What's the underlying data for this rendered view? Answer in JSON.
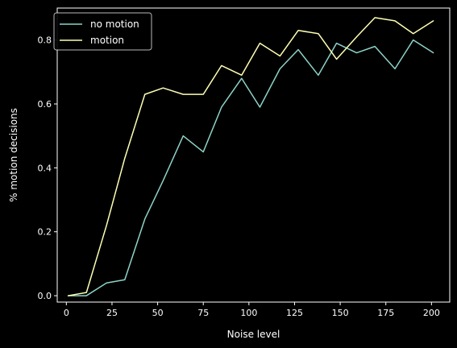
{
  "chart_data": {
    "type": "line",
    "title": "",
    "xlabel": "Noise level",
    "ylabel": "% motion decisions",
    "xlim": [
      -5,
      210
    ],
    "ylim": [
      -0.02,
      0.9
    ],
    "x_ticks": [
      0,
      25,
      50,
      75,
      100,
      125,
      150,
      175,
      200
    ],
    "y_ticks": [
      0.0,
      0.2,
      0.4,
      0.6,
      0.8
    ],
    "x_tick_labels": [
      "0",
      "25",
      "50",
      "75",
      "100",
      "125",
      "150",
      "175",
      "200"
    ],
    "y_tick_labels": [
      "0.0",
      "0.2",
      "0.4",
      "0.6",
      "0.8"
    ],
    "grid": false,
    "legend_position": "top-left",
    "x": [
      1,
      11,
      22,
      32,
      43,
      53,
      64,
      75,
      85,
      96,
      106,
      117,
      127,
      138,
      148,
      159,
      169,
      180,
      190,
      201
    ],
    "series": [
      {
        "name": "no motion",
        "color": "#8dd3c7",
        "values": [
          0.0,
          0.0,
          0.04,
          0.05,
          0.24,
          0.36,
          0.5,
          0.45,
          0.59,
          0.68,
          0.59,
          0.71,
          0.77,
          0.69,
          0.79,
          0.76,
          0.78,
          0.71,
          0.8,
          0.76
        ]
      },
      {
        "name": "motion",
        "color": "#feffb3",
        "values": [
          0.0,
          0.01,
          0.22,
          0.43,
          0.63,
          0.65,
          0.63,
          0.63,
          0.72,
          0.69,
          0.79,
          0.75,
          0.83,
          0.82,
          0.74,
          0.81,
          0.87,
          0.86,
          0.82,
          0.86
        ]
      }
    ]
  },
  "colors": {
    "background": "#000000",
    "axes": "#ffffff",
    "legend_border": "#cccccc"
  }
}
